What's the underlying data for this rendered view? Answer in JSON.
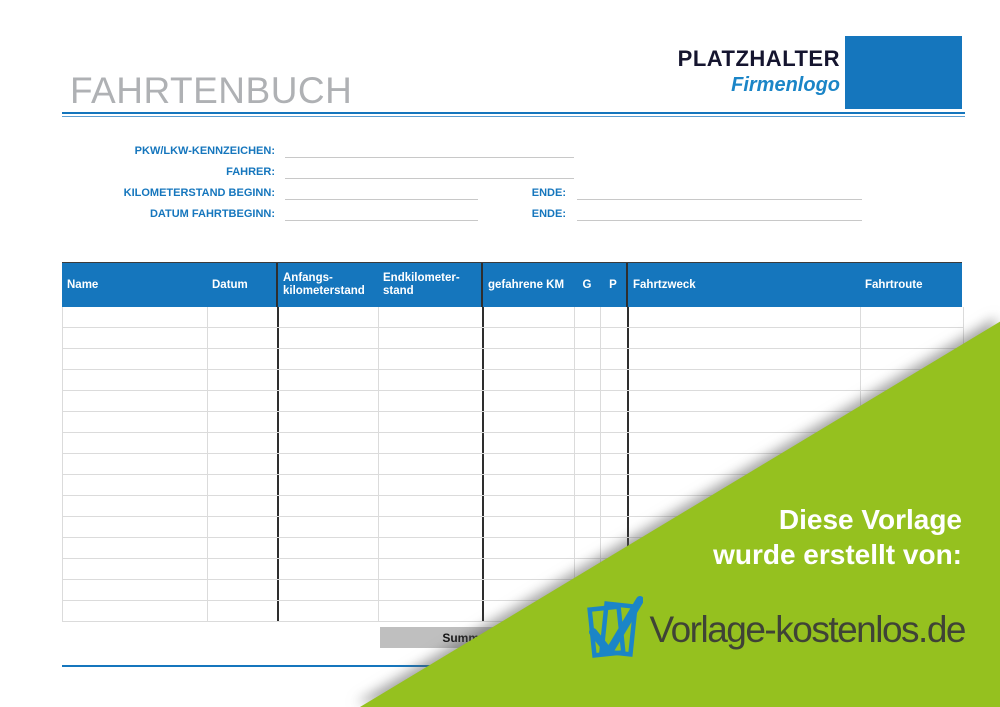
{
  "page": {
    "title": "FAHRTENBUCH",
    "logo_line1": "PLATZHALTER",
    "logo_line2": "Firmenlogo"
  },
  "form": {
    "rows": [
      {
        "label": "PKW/LKW-KENNZEICHEN:",
        "value": ""
      },
      {
        "label": "FAHRER:",
        "value": ""
      },
      {
        "label": "KILOMETERSTAND BEGINN:",
        "value": "",
        "label2": "ENDE:",
        "value2": ""
      },
      {
        "label": "DATUM FAHRTBEGINN:",
        "value": "",
        "label2": "ENDE:",
        "value2": ""
      }
    ]
  },
  "table": {
    "columns": [
      "Name",
      "Datum",
      "Anfangs-\nkilometerstand",
      "Endkilometer-\nstand",
      "gefahrene KM",
      "G",
      "P",
      "Fahrtzweck",
      "Fahrtroute"
    ],
    "row_count": 15,
    "rows_empty": true,
    "summe_label": "Summe"
  },
  "overlay": {
    "line1": "Diese Vorlage",
    "line2": "wurde erstellt von:",
    "brand": "Vorlage-kostenlos.de",
    "brand_icon": "document-check-icon"
  },
  "colors": {
    "accent_blue": "#1576BD",
    "logo_blue": "#1B85C7",
    "dark_navy": "#15152F",
    "title_gray": "#AFB1B4",
    "table_light_border": "#DBDBDB",
    "table_dark_border": "#2E2E2E",
    "summe_gray": "#BFBFBF",
    "green": "#95C11F",
    "brand_text": "#3F4336"
  }
}
